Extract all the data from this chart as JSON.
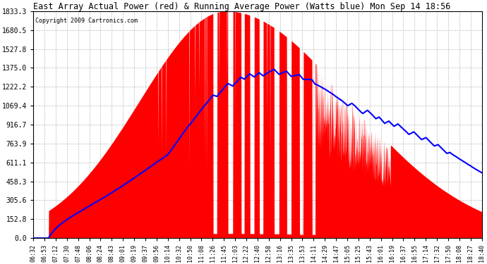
{
  "title": "East Array Actual Power (red) & Running Average Power (Watts blue) Mon Sep 14 18:56",
  "copyright": "Copyright 2009 Cartronics.com",
  "y_ticks": [
    0.0,
    152.8,
    305.6,
    458.3,
    611.1,
    763.9,
    916.7,
    1069.4,
    1222.2,
    1375.0,
    1527.8,
    1680.5,
    1833.3
  ],
  "y_max": 1833.3,
  "y_min": 0.0,
  "background_color": "#ffffff",
  "plot_bg_color": "#ffffff",
  "grid_color": "#aaaaaa",
  "fill_color": "#ff0000",
  "line_color": "#0000ff",
  "x_labels": [
    "06:32",
    "06:53",
    "07:12",
    "07:30",
    "07:48",
    "08:06",
    "08:24",
    "08:43",
    "09:01",
    "09:19",
    "09:37",
    "09:56",
    "10:14",
    "10:32",
    "10:50",
    "11:08",
    "11:26",
    "11:45",
    "12:03",
    "12:22",
    "12:40",
    "12:58",
    "13:16",
    "13:35",
    "13:53",
    "14:11",
    "14:29",
    "14:47",
    "15:05",
    "15:25",
    "15:43",
    "16:01",
    "16:19",
    "16:37",
    "16:55",
    "17:14",
    "17:32",
    "17:50",
    "18:08",
    "18:27",
    "18:40"
  ]
}
